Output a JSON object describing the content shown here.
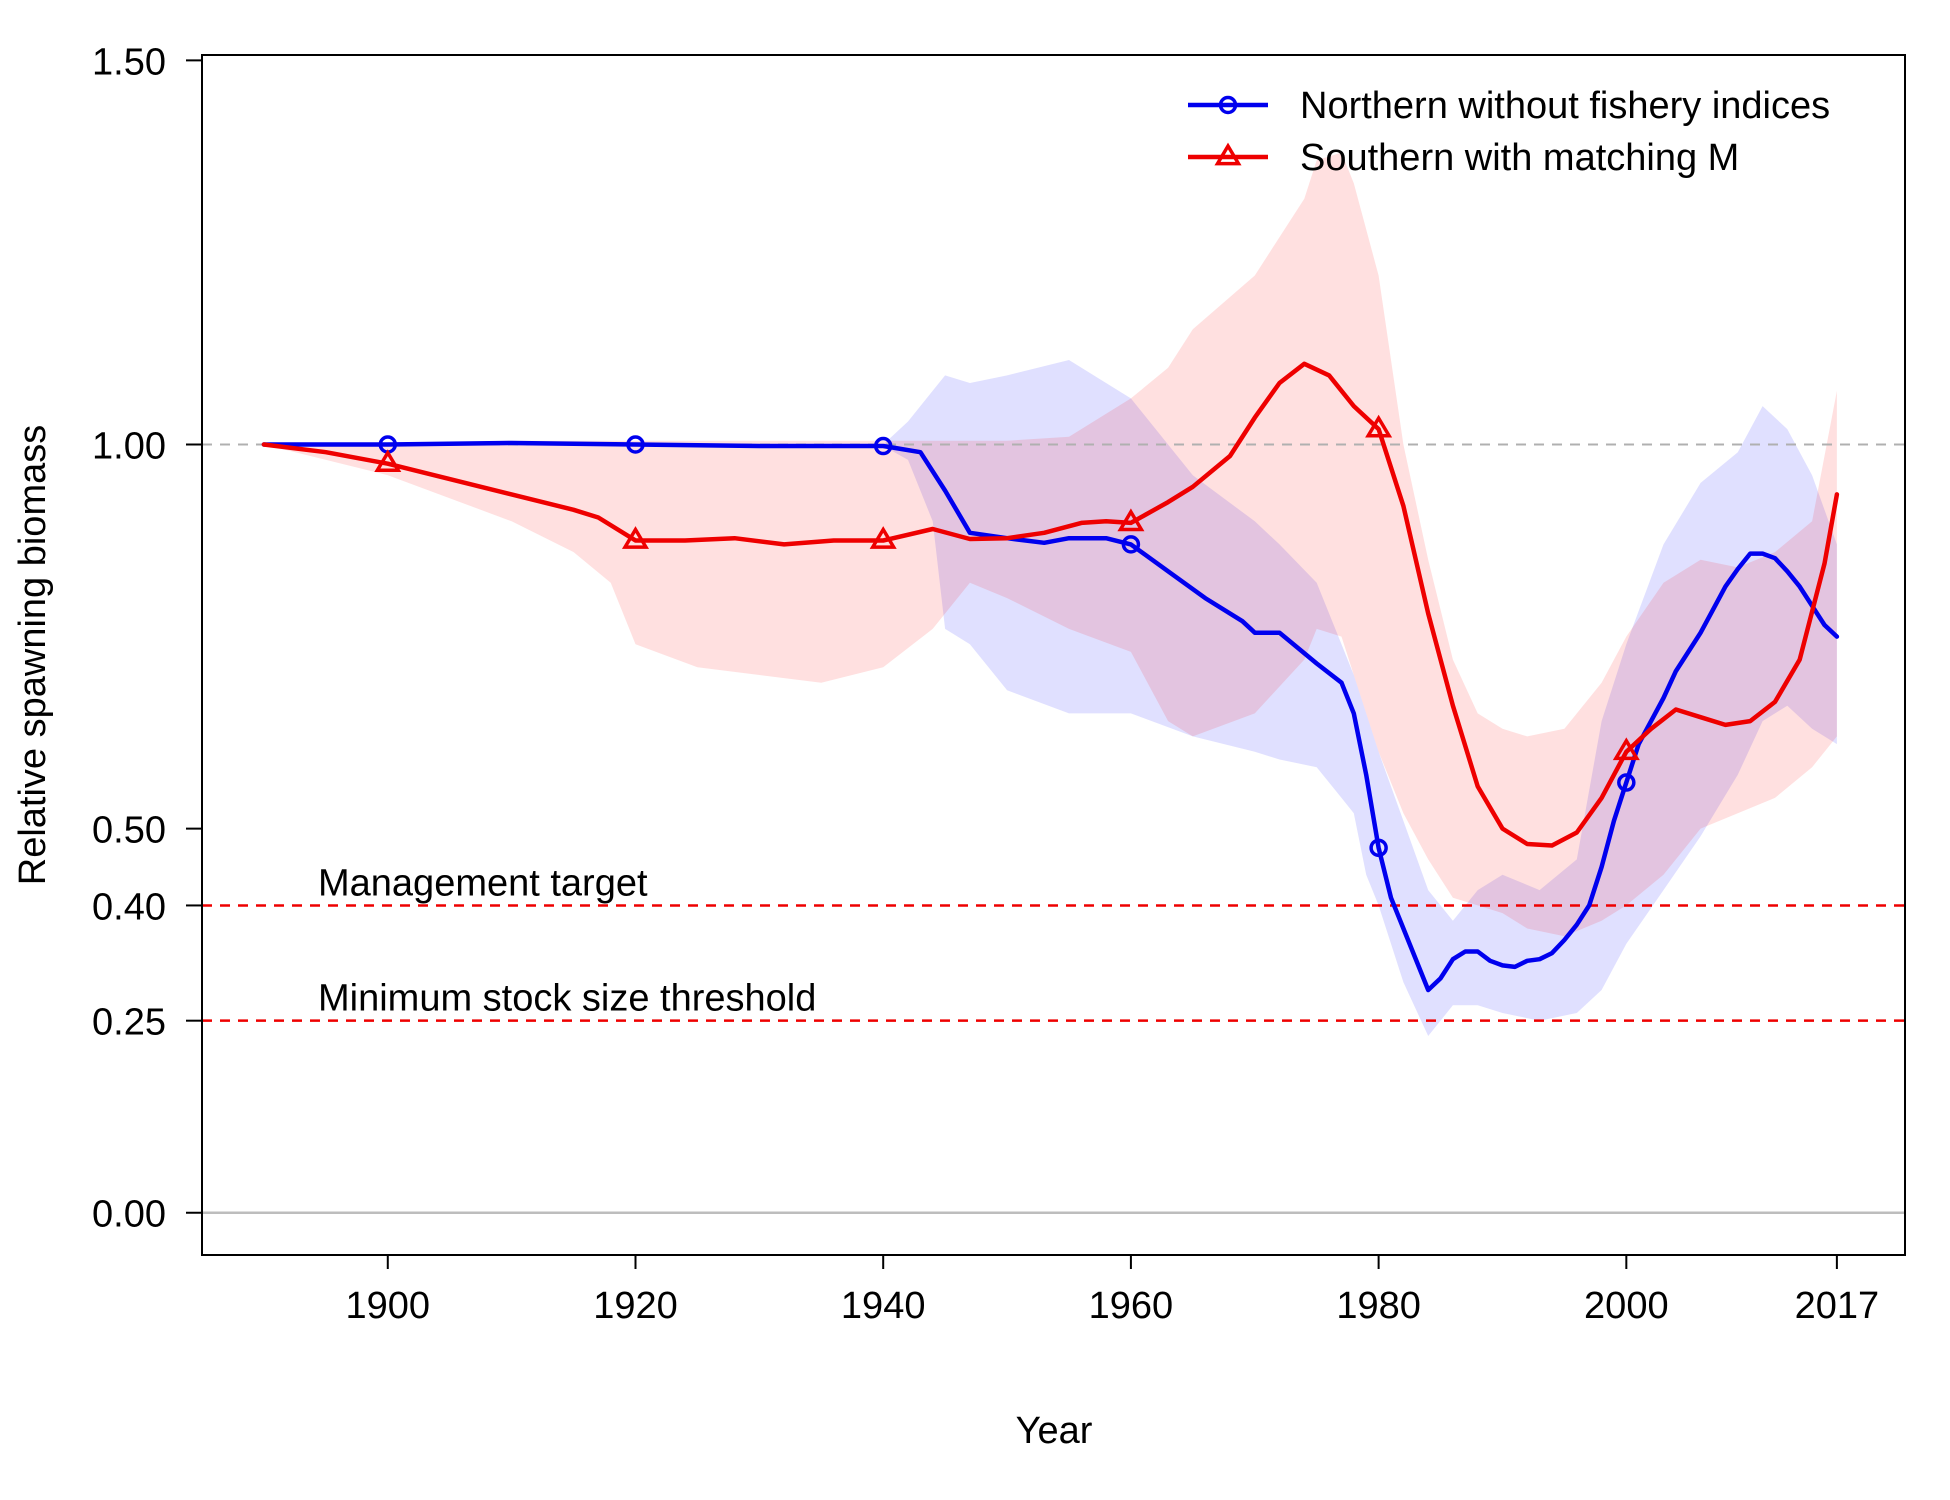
{
  "chart_data": {
    "type": "line",
    "title": "",
    "xlabel": "Year",
    "ylabel": "Relative spawning biomass",
    "xlim": [
      1885,
      2022.5
    ],
    "ylim": [
      -0.055,
      1.507
    ],
    "x_ticks": [
      1900,
      1920,
      1940,
      1960,
      1980,
      2000,
      2017
    ],
    "x_tick_labels": [
      "1900",
      "1920",
      "1940",
      "1960",
      "1980",
      "2000",
      "2017"
    ],
    "y_ticks": [
      0,
      0.25,
      0.4,
      0.5,
      1.0,
      1.5
    ],
    "y_tick_labels": [
      "0.00",
      "0.25",
      "0.40",
      "0.50",
      "1.00",
      "1.50"
    ],
    "grid": false,
    "legend_position": "top-right",
    "colors": {
      "northern": "#0000ee",
      "southern": "#ee0000",
      "northern_band": "#0000ff",
      "southern_band": "#ff0000",
      "reference_line": "#ee0000",
      "unfished_line": "#b0b0b0",
      "zero_line": "#bdbdbd"
    },
    "reference_lines": [
      {
        "label": "Management target",
        "y": 0.4,
        "style": "dashed"
      },
      {
        "label": "Minimum stock size threshold",
        "y": 0.25,
        "style": "dashed"
      }
    ],
    "horizontal_guides": [
      {
        "y": 1.0,
        "style": "dashed-gray"
      },
      {
        "y": 0.0,
        "style": "solid-gray"
      }
    ],
    "series": [
      {
        "name": "Northern without fishery indices",
        "marker": "circle",
        "marker_x": [
          1900,
          1920,
          1940,
          1960,
          1980,
          2000
        ],
        "x": [
          1890,
          1900,
          1910,
          1920,
          1930,
          1940,
          1943,
          1945,
          1947,
          1950,
          1953,
          1955,
          1958,
          1960,
          1963,
          1966,
          1969,
          1970,
          1972,
          1975,
          1977,
          1978,
          1979,
          1980,
          1981,
          1982,
          1984,
          1985,
          1986,
          1987,
          1988,
          1989,
          1990,
          1991,
          1992,
          1993,
          1994,
          1995,
          1996,
          1997,
          1998,
          1999,
          2000,
          2001,
          2003,
          2004,
          2005,
          2006,
          2007,
          2008,
          2009,
          2010,
          2011,
          2012,
          2013,
          2014,
          2015,
          2016,
          2017
        ],
        "y": [
          1.0,
          1.0,
          1.002,
          1.0,
          0.998,
          0.998,
          0.99,
          0.94,
          0.885,
          0.878,
          0.872,
          0.878,
          0.878,
          0.87,
          0.835,
          0.8,
          0.77,
          0.755,
          0.755,
          0.715,
          0.69,
          0.65,
          0.57,
          0.475,
          0.41,
          0.37,
          0.29,
          0.305,
          0.33,
          0.34,
          0.34,
          0.328,
          0.322,
          0.32,
          0.328,
          0.33,
          0.338,
          0.355,
          0.375,
          0.4,
          0.45,
          0.51,
          0.56,
          0.61,
          0.67,
          0.705,
          0.73,
          0.755,
          0.785,
          0.815,
          0.838,
          0.858,
          0.858,
          0.852,
          0.835,
          0.815,
          0.79,
          0.765,
          0.75
        ]
      },
      {
        "name": "Southern with matching M",
        "marker": "triangle",
        "marker_x": [
          1900,
          1920,
          1940,
          1960,
          1980,
          2000
        ],
        "x": [
          1890,
          1895,
          1900,
          1905,
          1910,
          1915,
          1917,
          1920,
          1924,
          1928,
          1932,
          1936,
          1940,
          1944,
          1947,
          1950,
          1953,
          1956,
          1958,
          1960,
          1963,
          1965,
          1968,
          1970,
          1972,
          1974,
          1976,
          1978,
          1980,
          1982,
          1984,
          1986,
          1988,
          1990,
          1992,
          1994,
          1996,
          1998,
          2000,
          2002,
          2004,
          2006,
          2008,
          2010,
          2012,
          2014,
          2016,
          2017
        ],
        "y": [
          1.0,
          0.99,
          0.975,
          0.955,
          0.935,
          0.915,
          0.905,
          0.875,
          0.875,
          0.878,
          0.87,
          0.875,
          0.875,
          0.89,
          0.877,
          0.878,
          0.885,
          0.898,
          0.9,
          0.898,
          0.925,
          0.945,
          0.985,
          1.035,
          1.08,
          1.105,
          1.09,
          1.05,
          1.02,
          0.92,
          0.78,
          0.66,
          0.555,
          0.5,
          0.48,
          0.478,
          0.495,
          0.54,
          0.6,
          0.63,
          0.655,
          0.645,
          0.635,
          0.64,
          0.665,
          0.72,
          0.845,
          0.935
        ]
      }
    ],
    "confidence_bands": [
      {
        "series": "Northern without fishery indices",
        "x": [
          1940,
          1942,
          1944,
          1945,
          1947,
          1950,
          1955,
          1960,
          1965,
          1970,
          1972,
          1975,
          1977,
          1978,
          1979,
          1980,
          1982,
          1984,
          1986,
          1988,
          1990,
          1993,
          1996,
          1998,
          2000,
          2003,
          2006,
          2009,
          2011,
          2013,
          2015,
          2017
        ],
        "upper": [
          1.0,
          1.03,
          1.07,
          1.09,
          1.08,
          1.09,
          1.11,
          1.06,
          0.96,
          0.9,
          0.87,
          0.82,
          0.74,
          0.7,
          0.65,
          0.6,
          0.51,
          0.42,
          0.38,
          0.42,
          0.44,
          0.42,
          0.46,
          0.64,
          0.74,
          0.87,
          0.95,
          0.99,
          1.05,
          1.02,
          0.96,
          0.87
        ],
        "lower": [
          0.998,
          0.98,
          0.9,
          0.76,
          0.74,
          0.68,
          0.65,
          0.65,
          0.62,
          0.6,
          0.59,
          0.58,
          0.54,
          0.52,
          0.44,
          0.4,
          0.3,
          0.23,
          0.27,
          0.27,
          0.26,
          0.25,
          0.26,
          0.29,
          0.35,
          0.42,
          0.49,
          0.57,
          0.64,
          0.66,
          0.63,
          0.61
        ]
      },
      {
        "series": "Southern with matching M",
        "x": [
          1890,
          1900,
          1910,
          1915,
          1918,
          1920,
          1925,
          1930,
          1935,
          1940,
          1944,
          1947,
          1950,
          1955,
          1960,
          1963,
          1965,
          1970,
          1974,
          1975,
          1977,
          1978,
          1980,
          1982,
          1984,
          1986,
          1988,
          1990,
          1992,
          1995,
          1998,
          2000,
          2003,
          2006,
          2009,
          2012,
          2015,
          2017
        ],
        "upper": [
          1.0,
          1.0,
          1.005,
          1.005,
          1.005,
          1.005,
          1.005,
          1.005,
          1.005,
          1.005,
          1.005,
          1.005,
          1.005,
          1.01,
          1.06,
          1.1,
          1.15,
          1.22,
          1.32,
          1.37,
          1.38,
          1.34,
          1.22,
          1.0,
          0.85,
          0.72,
          0.65,
          0.63,
          0.62,
          0.63,
          0.69,
          0.75,
          0.82,
          0.85,
          0.84,
          0.86,
          0.9,
          1.07
        ],
        "lower": [
          1.0,
          0.96,
          0.9,
          0.86,
          0.82,
          0.74,
          0.71,
          0.7,
          0.69,
          0.71,
          0.76,
          0.82,
          0.8,
          0.76,
          0.73,
          0.64,
          0.62,
          0.65,
          0.72,
          0.76,
          0.75,
          0.7,
          0.6,
          0.52,
          0.46,
          0.41,
          0.4,
          0.39,
          0.37,
          0.36,
          0.38,
          0.4,
          0.44,
          0.5,
          0.52,
          0.54,
          0.58,
          0.62
        ]
      }
    ]
  }
}
